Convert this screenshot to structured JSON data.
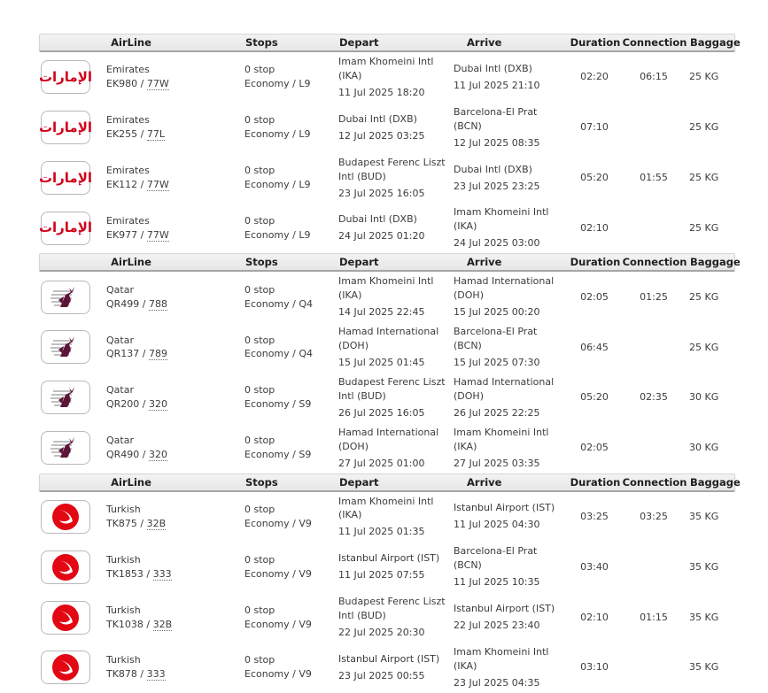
{
  "columns": [
    "AirLine",
    "Stops",
    "Depart",
    "Arrive",
    "Duration",
    "Connection",
    "Baggage"
  ],
  "labels": {
    "code_separator": " / "
  },
  "colors": {
    "emirates_red": "#d0021b",
    "qatar_maroon": "#5d1439",
    "turkish_red": "#e30613",
    "header_bg": "#e9e9e9",
    "header_border": "#a5a5a5"
  },
  "groups": [
    {
      "airline_key": "emirates",
      "logo_icon": "emirates-logo",
      "logo_glyph": "الإمارات",
      "flights": [
        {
          "airline": "Emirates",
          "flight_no": "EK980",
          "aircraft": "77W",
          "stops": "0 stop",
          "cabin": "Economy / L9",
          "depart_airport": "Imam Khomeini Intl (IKA)",
          "depart_time": "11 Jul 2025 18:20",
          "arrive_airport": "Dubai Intl (DXB)",
          "arrive_time": "11 Jul 2025 21:10",
          "duration": "02:20",
          "connection": "06:15",
          "baggage": "25 KG"
        },
        {
          "airline": "Emirates",
          "flight_no": "EK255",
          "aircraft": "77L",
          "stops": "0 stop",
          "cabin": "Economy / L9",
          "depart_airport": "Dubai Intl (DXB)",
          "depart_time": "12 Jul 2025 03:25",
          "arrive_airport": "Barcelona-El Prat (BCN)",
          "arrive_time": "12 Jul 2025 08:35",
          "duration": "07:10",
          "connection": "",
          "baggage": "25 KG"
        },
        {
          "airline": "Emirates",
          "flight_no": "EK112",
          "aircraft": "77W",
          "stops": "0 stop",
          "cabin": "Economy / L9",
          "depart_airport": "Budapest Ferenc Liszt Intl (BUD)",
          "depart_time": "23 Jul 2025 16:05",
          "arrive_airport": "Dubai Intl (DXB)",
          "arrive_time": "23 Jul 2025 23:25",
          "duration": "05:20",
          "connection": "01:55",
          "baggage": "25 KG"
        },
        {
          "airline": "Emirates",
          "flight_no": "EK977",
          "aircraft": "77W",
          "stops": "0 stop",
          "cabin": "Economy / L9",
          "depart_airport": "Dubai Intl (DXB)",
          "depart_time": "24 Jul 2025 01:20",
          "arrive_airport": "Imam Khomeini Intl (IKA)",
          "arrive_time": "24 Jul 2025 03:00",
          "duration": "02:10",
          "connection": "",
          "baggage": "25 KG"
        }
      ]
    },
    {
      "airline_key": "qatar",
      "logo_icon": "qatar-airways-logo",
      "flights": [
        {
          "airline": "Qatar",
          "flight_no": "QR499",
          "aircraft": "788",
          "stops": "0 stop",
          "cabin": "Economy / Q4",
          "depart_airport": "Imam Khomeini Intl (IKA)",
          "depart_time": "14 Jul 2025 22:45",
          "arrive_airport": "Hamad International (DOH)",
          "arrive_time": "15 Jul 2025 00:20",
          "duration": "02:05",
          "connection": "01:25",
          "baggage": "25 KG"
        },
        {
          "airline": "Qatar",
          "flight_no": "QR137",
          "aircraft": "789",
          "stops": "0 stop",
          "cabin": "Economy / Q4",
          "depart_airport": "Hamad International (DOH)",
          "depart_time": "15 Jul 2025 01:45",
          "arrive_airport": "Barcelona-El Prat (BCN)",
          "arrive_time": "15 Jul 2025 07:30",
          "duration": "06:45",
          "connection": "",
          "baggage": "25 KG"
        },
        {
          "airline": "Qatar",
          "flight_no": "QR200",
          "aircraft": "320",
          "stops": "0 stop",
          "cabin": "Economy / S9",
          "depart_airport": "Budapest Ferenc Liszt Intl (BUD)",
          "depart_time": "26 Jul 2025 16:05",
          "arrive_airport": "Hamad International (DOH)",
          "arrive_time": "26 Jul 2025 22:25",
          "duration": "05:20",
          "connection": "02:35",
          "baggage": "30 KG"
        },
        {
          "airline": "Qatar",
          "flight_no": "QR490",
          "aircraft": "320",
          "stops": "0 stop",
          "cabin": "Economy / S9",
          "depart_airport": "Hamad International (DOH)",
          "depart_time": "27 Jul 2025 01:00",
          "arrive_airport": "Imam Khomeini Intl (IKA)",
          "arrive_time": "27 Jul 2025 03:35",
          "duration": "02:05",
          "connection": "",
          "baggage": "30 KG"
        }
      ]
    },
    {
      "airline_key": "turkish",
      "logo_icon": "turkish-airlines-logo",
      "flights": [
        {
          "airline": "Turkish",
          "flight_no": "TK875",
          "aircraft": "32B",
          "stops": "0 stop",
          "cabin": "Economy / V9",
          "depart_airport": "Imam Khomeini Intl (IKA)",
          "depart_time": "11 Jul 2025 01:35",
          "arrive_airport": "Istanbul Airport (IST)",
          "arrive_time": "11 Jul 2025 04:30",
          "duration": "03:25",
          "connection": "03:25",
          "baggage": "35 KG"
        },
        {
          "airline": "Turkish",
          "flight_no": "TK1853",
          "aircraft": "333",
          "stops": "0 stop",
          "cabin": "Economy / V9",
          "depart_airport": "Istanbul Airport (IST)",
          "depart_time": "11 Jul 2025 07:55",
          "arrive_airport": "Barcelona-El Prat (BCN)",
          "arrive_time": "11 Jul 2025 10:35",
          "duration": "03:40",
          "connection": "",
          "baggage": "35 KG"
        },
        {
          "airline": "Turkish",
          "flight_no": "TK1038",
          "aircraft": "32B",
          "stops": "0 stop",
          "cabin": "Economy / V9",
          "depart_airport": "Budapest Ferenc Liszt Intl (BUD)",
          "depart_time": "22 Jul 2025 20:30",
          "arrive_airport": "Istanbul Airport (IST)",
          "arrive_time": "22 Jul 2025 23:40",
          "duration": "02:10",
          "connection": "01:15",
          "baggage": "35 KG"
        },
        {
          "airline": "Turkish",
          "flight_no": "TK878",
          "aircraft": "333",
          "stops": "0 stop",
          "cabin": "Economy / V9",
          "depart_airport": "Istanbul Airport (IST)",
          "depart_time": "23 Jul 2025 00:55",
          "arrive_airport": "Imam Khomeini Intl (IKA)",
          "arrive_time": "23 Jul 2025 04:35",
          "duration": "03:10",
          "connection": "",
          "baggage": "35 KG"
        }
      ]
    }
  ]
}
